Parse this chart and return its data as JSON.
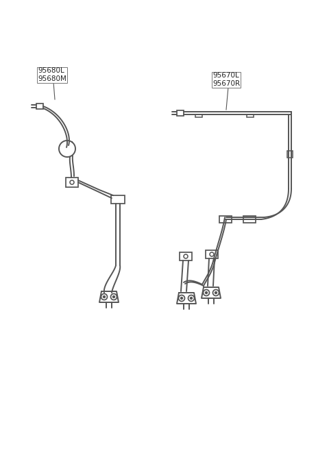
{
  "bg_color": "#ffffff",
  "line_color": "#555555",
  "line_width": 1.4,
  "label_left": "95680L\n95680M",
  "label_right": "95670L\n95670R",
  "figsize": [
    4.8,
    6.55
  ],
  "dpi": 100
}
